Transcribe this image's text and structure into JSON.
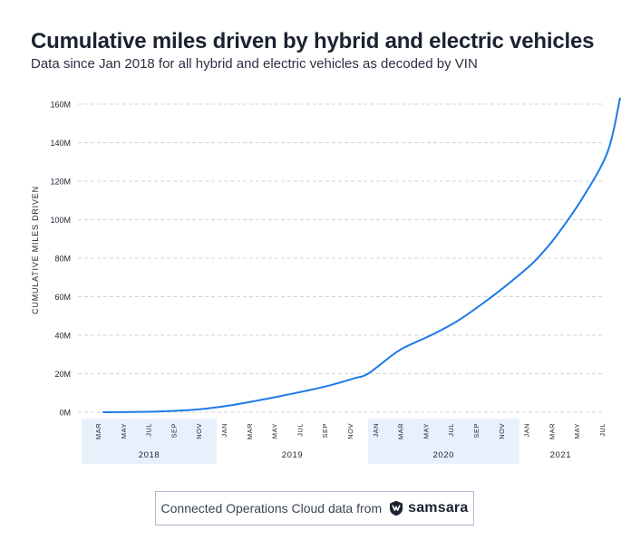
{
  "header": {
    "title": "Cumulative miles driven by hybrid and electric vehicles",
    "subtitle": "Data since Jan 2018 for all hybrid and electric vehicles as decoded by VIN"
  },
  "footer": {
    "text": "Connected Operations Cloud data from",
    "brand": "samsara",
    "brand_icon": "samsara-logo-icon"
  },
  "colors": {
    "line": "#1f7ae8",
    "grid": "#cfd4dc",
    "year_band": "#e8f1fb",
    "text": "#1b2230"
  },
  "chart_data": {
    "type": "line",
    "title": "Cumulative miles driven by hybrid and electric vehicles",
    "subtitle": "Data since Jan 2018 for all hybrid and electric vehicles as decoded by VIN",
    "xlabel": "",
    "ylabel": "CUMULATIVE MILES DRIVEN",
    "ylim": [
      0,
      160
    ],
    "y_unit": "M",
    "y_ticks": [
      "0M",
      "20M",
      "40M",
      "60M",
      "80M",
      "100M",
      "120M",
      "140M",
      "160M"
    ],
    "grid": true,
    "x_range_months": [
      0,
      41
    ],
    "x_ticks": [
      {
        "m": 0,
        "label": "MAR"
      },
      {
        "m": 2,
        "label": "MAY"
      },
      {
        "m": 4,
        "label": "JUL"
      },
      {
        "m": 6,
        "label": "SEP"
      },
      {
        "m": 8,
        "label": "NOV"
      },
      {
        "m": 10,
        "label": "JAN"
      },
      {
        "m": 12,
        "label": "MAR"
      },
      {
        "m": 14,
        "label": "MAY"
      },
      {
        "m": 16,
        "label": "JUL"
      },
      {
        "m": 18,
        "label": "SEP"
      },
      {
        "m": 20,
        "label": "NOV"
      },
      {
        "m": 22,
        "label": "JAN"
      },
      {
        "m": 24,
        "label": "MAR"
      },
      {
        "m": 26,
        "label": "MAY"
      },
      {
        "m": 28,
        "label": "JUL"
      },
      {
        "m": 30,
        "label": "SEP"
      },
      {
        "m": 32,
        "label": "NOV"
      },
      {
        "m": 34,
        "label": "JAN"
      },
      {
        "m": 36,
        "label": "MAR"
      },
      {
        "m": 38,
        "label": "MAY"
      },
      {
        "m": 40,
        "label": "JUL"
      }
    ],
    "years": [
      {
        "label": "2018",
        "start": -1,
        "end": 9,
        "shaded": true
      },
      {
        "label": "2019",
        "start": 9,
        "end": 21,
        "shaded": false
      },
      {
        "label": "2020",
        "start": 21,
        "end": 33,
        "shaded": true
      },
      {
        "label": "2021",
        "start": 33,
        "end": 41,
        "shaded": false
      }
    ],
    "series": [
      {
        "name": "Cumulative miles driven (M)",
        "x": [
          0,
          2,
          4,
          6,
          8,
          10,
          12,
          14,
          16,
          18,
          20,
          21,
          23,
          24,
          26,
          28,
          30,
          32,
          34,
          35,
          36,
          38,
          40,
          41
        ],
        "values": [
          0,
          0.1,
          0.3,
          0.8,
          1.8,
          3.5,
          5.8,
          8.3,
          11.0,
          14.0,
          17.8,
          20,
          30,
          34,
          40,
          47,
          56,
          66,
          77,
          84,
          92,
          111,
          135,
          163
        ]
      }
    ]
  }
}
